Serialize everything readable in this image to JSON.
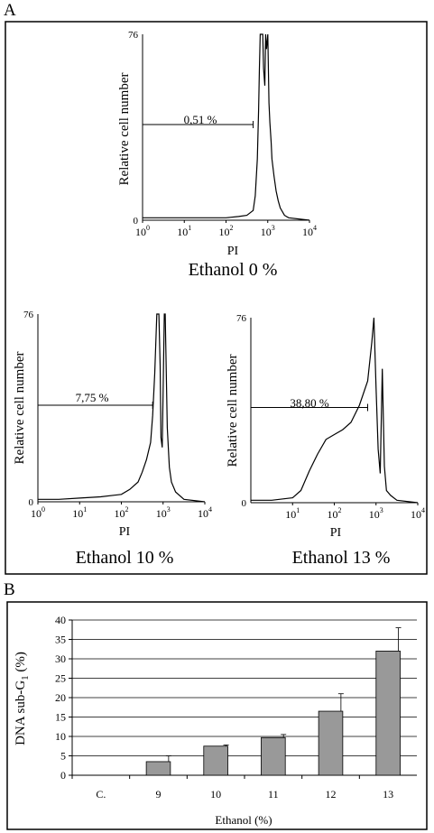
{
  "panel_a": {
    "letter": "A",
    "histograms": [
      {
        "caption": "Ethanol 0 %",
        "ylabel": "Relative cell number",
        "xlabel": "PI",
        "y_max_label": "76",
        "y_min_label": "0",
        "x_ticks": [
          {
            "base": "10",
            "exp": "0"
          },
          {
            "base": "10",
            "exp": "1"
          },
          {
            "base": "10",
            "exp": "2"
          },
          {
            "base": "10",
            "exp": "3"
          },
          {
            "base": "10",
            "exp": "4"
          }
        ],
        "marker_label": "0,51 %",
        "marker_range_log": [
          0,
          2.65
        ],
        "y_max": 76,
        "x_range_log": [
          0,
          4
        ]
      },
      {
        "caption": "Ethanol 10 %",
        "ylabel": "Relative cell number",
        "xlabel": "PI",
        "y_max_label": "76",
        "y_min_label": "0",
        "x_ticks": [
          {
            "base": "10",
            "exp": "0"
          },
          {
            "base": "10",
            "exp": "1"
          },
          {
            "base": "10",
            "exp": "2"
          },
          {
            "base": "10",
            "exp": "3"
          },
          {
            "base": "10",
            "exp": "4"
          }
        ],
        "marker_label": "7,75 %",
        "marker_range_log": [
          0,
          2.75
        ],
        "y_max": 76,
        "x_range_log": [
          0,
          4
        ]
      },
      {
        "caption": "Ethanol 13 %",
        "ylabel": "Relative cell number",
        "xlabel": "PI",
        "y_max_label": "76",
        "y_min_label": "0",
        "x_ticks": [
          {
            "base": "10",
            "exp": "1"
          },
          {
            "base": "10",
            "exp": "2"
          },
          {
            "base": "10",
            "exp": "3"
          },
          {
            "base": "10",
            "exp": "4"
          }
        ],
        "marker_label": "38,80 %",
        "marker_range_log": [
          0,
          2.8
        ],
        "y_max": 76,
        "x_range_log": [
          0,
          4
        ]
      }
    ]
  },
  "panel_b": {
    "letter": "B"
  },
  "chart_data": [
    {
      "type": "line",
      "title": "Ethanol 0 %",
      "xlabel": "PI",
      "ylabel": "Relative cell number",
      "x_scale": "log",
      "xlim": [
        1,
        10000
      ],
      "ylim": [
        0,
        76
      ],
      "annotation": "0,51 %",
      "x_log": [
        0.0,
        0.5,
        1.0,
        1.5,
        2.0,
        2.3,
        2.5,
        2.65,
        2.7,
        2.75,
        2.78,
        2.8,
        2.82,
        2.85,
        2.88,
        2.9,
        2.93,
        2.95,
        2.97,
        3.0,
        3.03,
        3.05,
        3.08,
        3.1,
        3.15,
        3.2,
        3.25,
        3.3,
        3.4,
        3.5,
        4.0
      ],
      "y": [
        1,
        1,
        1,
        1,
        1,
        1.5,
        2,
        4,
        10,
        25,
        45,
        62,
        76,
        76,
        76,
        62,
        55,
        76,
        70,
        76,
        48,
        40,
        32,
        25,
        18,
        12,
        8,
        5,
        2,
        1,
        0
      ]
    },
    {
      "type": "line",
      "title": "Ethanol 10 %",
      "xlabel": "PI",
      "ylabel": "Relative cell number",
      "x_scale": "log",
      "xlim": [
        1,
        10000
      ],
      "ylim": [
        0,
        76
      ],
      "annotation": "7,75 %",
      "x_log": [
        0.0,
        0.5,
        1.0,
        1.5,
        2.0,
        2.2,
        2.4,
        2.5,
        2.6,
        2.7,
        2.75,
        2.8,
        2.85,
        2.88,
        2.9,
        2.93,
        2.95,
        2.98,
        3.0,
        3.03,
        3.05,
        3.08,
        3.1,
        3.15,
        3.2,
        3.3,
        3.5,
        4.0
      ],
      "y": [
        1,
        1,
        1.5,
        2,
        3,
        5,
        8,
        12,
        17,
        24,
        35,
        52,
        76,
        76,
        76,
        55,
        26,
        22,
        45,
        76,
        76,
        48,
        30,
        14,
        8,
        4,
        1,
        0
      ]
    },
    {
      "type": "line",
      "title": "Ethanol 13 %",
      "xlabel": "PI",
      "ylabel": "Relative cell number",
      "x_scale": "log",
      "xlim": [
        1,
        10000
      ],
      "ylim": [
        0,
        76
      ],
      "annotation": "38,80 %",
      "x_log": [
        0.0,
        0.5,
        1.0,
        1.2,
        1.4,
        1.6,
        1.8,
        2.0,
        2.2,
        2.4,
        2.6,
        2.8,
        2.9,
        2.95,
        3.0,
        3.05,
        3.1,
        3.15,
        3.2,
        3.25,
        3.35,
        3.5,
        4.0
      ],
      "y": [
        1,
        1,
        2,
        5,
        13,
        20,
        26,
        28,
        30,
        33,
        40,
        50,
        66,
        76,
        47,
        22,
        12,
        55,
        15,
        5,
        3,
        1,
        0
      ]
    },
    {
      "type": "bar",
      "title": "",
      "xlabel": "Ethanol (%)",
      "ylabel": "DNA sub-G1 (%)",
      "ylabel_main": "DNA sub-G",
      "ylabel_sub": "1",
      "ylabel_tail": " (%)",
      "categories": [
        "C.",
        "9",
        "10",
        "11",
        "12",
        "13"
      ],
      "values": [
        0,
        3.5,
        7.5,
        9.7,
        16.5,
        32
      ],
      "errors": [
        0,
        1.5,
        0.3,
        0.8,
        4.5,
        6
      ],
      "ylim": [
        0,
        40
      ],
      "yticks": [
        "0",
        "5",
        "10",
        "15",
        "20",
        "25",
        "30",
        "35",
        "40"
      ],
      "grid": true,
      "colors": {
        "bar": "#999999",
        "grid": "#000000"
      }
    }
  ]
}
